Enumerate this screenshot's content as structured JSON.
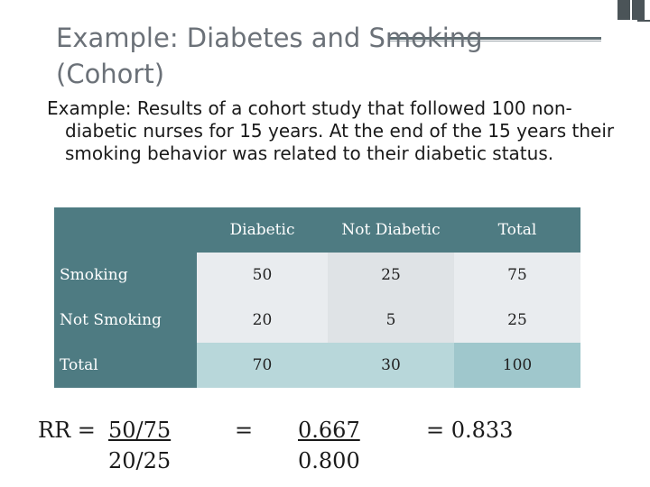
{
  "slide": {
    "title_line1": "Example: Diabetes and Smoking",
    "title_line2": "(Cohort)",
    "body": "Example: Results of a cohort study that followed 100 non-diabetic nurses for 15 years.  At the end of the 15 years their smoking behavior was related to their diabetic status."
  },
  "table": {
    "headers": [
      "",
      "Diabetic",
      "Not Diabetic",
      "Total"
    ],
    "rows": [
      {
        "label": "Smoking",
        "values": [
          "50",
          "25",
          "75"
        ]
      },
      {
        "label": "Not Smoking",
        "values": [
          "20",
          "5",
          "25"
        ]
      },
      {
        "label": "Total",
        "values": [
          "70",
          "30",
          "100"
        ]
      }
    ]
  },
  "calc": {
    "rr_prefix": "RR = ",
    "rr_num": "50/75",
    "rr_den": "20/25",
    "eq1": "=",
    "dec_num": "0.667",
    "dec_den": "0.800",
    "result": "= 0.833"
  }
}
